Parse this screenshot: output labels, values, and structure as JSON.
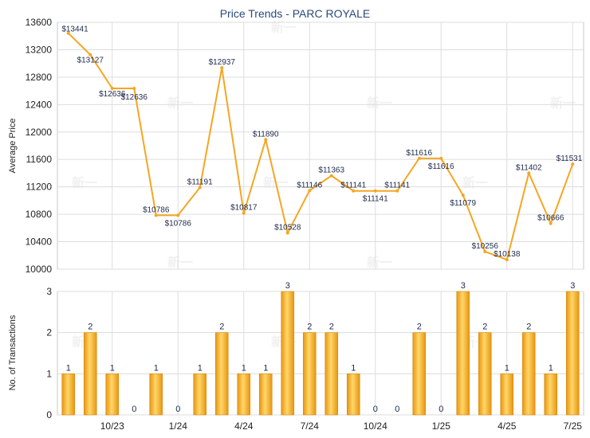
{
  "chart_data": [
    {
      "type": "line",
      "title": "Price Trends - PARC ROYALE",
      "ylabel": "Average Price",
      "xlabel": "",
      "ylim": [
        10000,
        13600
      ],
      "yticks": [
        10000,
        10400,
        10800,
        11200,
        11600,
        12000,
        12400,
        12800,
        13200,
        13600
      ],
      "xticks": [
        "10/23",
        "1/24",
        "4/24",
        "7/24",
        "10/24",
        "1/25",
        "4/25",
        "7/25"
      ],
      "grid": true,
      "series": [
        {
          "color": "#f5a623",
          "points": [
            {
              "x": 0,
              "y": 13441,
              "label": "$13441"
            },
            {
              "x": 1,
              "y": 13127,
              "label": "$13127"
            },
            {
              "x": 2,
              "y": 12636,
              "label": "$12636"
            },
            {
              "x": 3,
              "y": 12636,
              "label": "$12636"
            },
            {
              "x": 4,
              "y": 10786,
              "label": "$10786"
            },
            {
              "x": 5,
              "y": 10786,
              "label": "$10786"
            },
            {
              "x": 6,
              "y": 11191,
              "label": "$11191"
            },
            {
              "x": 7,
              "y": 12937,
              "label": "$12937"
            },
            {
              "x": 8,
              "y": 10817,
              "label": "$10817"
            },
            {
              "x": 9,
              "y": 11890,
              "label": "$11890"
            },
            {
              "x": 10,
              "y": 10528,
              "label": "$10528"
            },
            {
              "x": 11,
              "y": 11146,
              "label": "$11146"
            },
            {
              "x": 12,
              "y": 11363,
              "label": "$11363"
            },
            {
              "x": 13,
              "y": 11141,
              "label": "$11141"
            },
            {
              "x": 14,
              "y": 11141,
              "label": "$11141"
            },
            {
              "x": 15,
              "y": 11141,
              "label": "$11141"
            },
            {
              "x": 16,
              "y": 11616,
              "label": "$11616"
            },
            {
              "x": 17,
              "y": 11616,
              "label": "$11616"
            },
            {
              "x": 18,
              "y": 11079,
              "label": "$11079"
            },
            {
              "x": 19,
              "y": 10256,
              "label": "$10256"
            },
            {
              "x": 20,
              "y": 10138,
              "label": "$10138"
            },
            {
              "x": 21,
              "y": 11402,
              "label": "$11402"
            },
            {
              "x": 22,
              "y": 10666,
              "label": "$10666"
            },
            {
              "x": 23,
              "y": 11531,
              "label": "$11531"
            }
          ]
        }
      ]
    },
    {
      "type": "bar",
      "ylabel": "No. of Transactions",
      "xlabel": "",
      "ylim": [
        0,
        3
      ],
      "yticks": [
        0,
        1,
        2,
        3
      ],
      "xticks": [
        "10/23",
        "1/24",
        "4/24",
        "7/24",
        "10/24",
        "1/25",
        "4/25",
        "7/25"
      ],
      "grid": true,
      "color": "#f5a623",
      "values": [
        1,
        2,
        1,
        0,
        1,
        0,
        1,
        2,
        1,
        1,
        3,
        2,
        2,
        1,
        0,
        0,
        2,
        0,
        3,
        2,
        1,
        2,
        1,
        3
      ]
    }
  ],
  "watermark": "新一"
}
